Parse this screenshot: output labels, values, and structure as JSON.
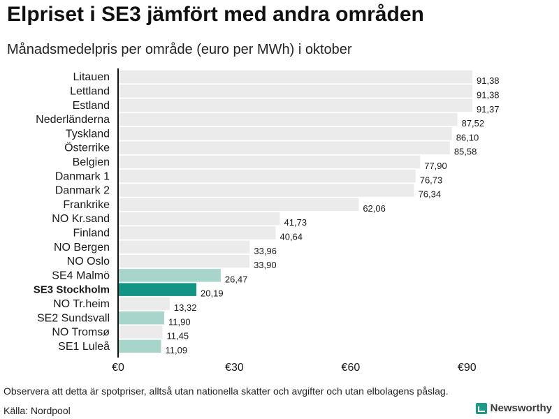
{
  "header": {
    "title": "Elpriset i SE3 jämfört med andra områden",
    "subtitle": "Månadsmedelpris per område (euro per MWh) i oktober"
  },
  "footer": {
    "note": "Observera att detta är spotpriser, alltså utan nationella skatter och avgifter och utan elbolagens påslag.",
    "source": "Källa: Nordpool",
    "brand": "Newsworthy"
  },
  "colors": {
    "bar_default": "#ebebeb",
    "bar_sweden": "#a7d5cc",
    "bar_highlight": "#139485",
    "axis": "#111111",
    "text": "#1a1a1a"
  },
  "chart_data": {
    "type": "bar",
    "orientation": "horizontal",
    "title": "Elpriset i SE3 jämfört med andra områden",
    "subtitle": "Månadsmedelpris per område (euro per MWh) i oktober",
    "xlabel": "",
    "ylabel": "",
    "xlim": [
      0,
      93
    ],
    "xticks": [
      0,
      30,
      60,
      90
    ],
    "xtick_labels": [
      "€0",
      "€30",
      "€60",
      "€90"
    ],
    "categories": [
      "Litauen",
      "Lettland",
      "Estland",
      "Nederländerna",
      "Tyskland",
      "Österrike",
      "Belgien",
      "Danmark  1",
      "Danmark  2",
      "Frankrike",
      "NO Kr.sand",
      "Finland",
      "NO Bergen",
      "NO Oslo",
      "SE4  Malmö",
      "SE3 Stockholm",
      "NO Tr.heim",
      "SE2  Sundsvall",
      "NO Tromsø",
      "SE1  Luleå"
    ],
    "values": [
      91.38,
      91.38,
      91.37,
      87.52,
      86.1,
      85.58,
      77.9,
      76.73,
      76.34,
      62.06,
      41.73,
      40.64,
      33.96,
      33.9,
      26.47,
      20.19,
      13.32,
      11.9,
      11.45,
      11.09
    ],
    "value_labels": [
      "91,38",
      "91,38",
      "91,37",
      "87,52",
      "86,10",
      "85,58",
      "77,90",
      "76,73",
      "76,34",
      "62,06",
      "41,73",
      "40,64",
      "33,96",
      "33,90",
      "26,47",
      "20,19",
      "13,32",
      "11,90",
      "11,45",
      "11,09"
    ],
    "bar_groups": [
      "other",
      "other",
      "other",
      "other",
      "other",
      "other",
      "other",
      "other",
      "other",
      "other",
      "other",
      "other",
      "other",
      "other",
      "sweden",
      "highlight",
      "other",
      "sweden",
      "other",
      "sweden"
    ],
    "grid": false,
    "legend": "none"
  }
}
